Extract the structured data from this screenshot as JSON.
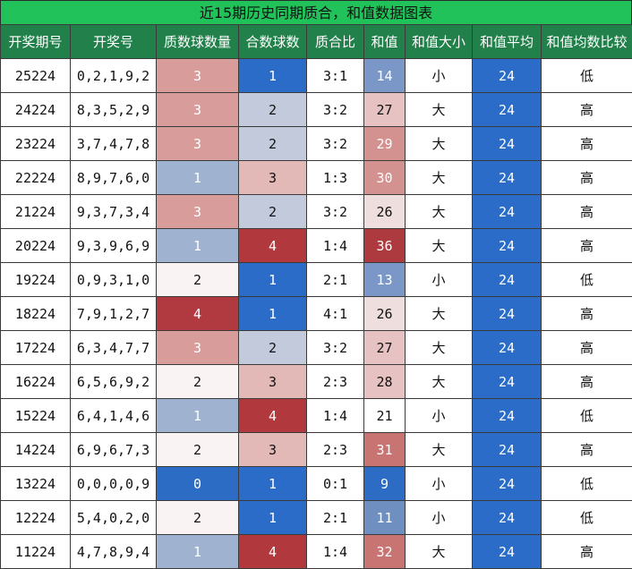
{
  "title": "近15期历史同期质合，和值数据图表",
  "columns": [
    "开奖期号",
    "开奖号",
    "质数球数量",
    "合数球数",
    "质合比",
    "和值",
    "和值大小",
    "和值平均",
    "和值均数比较"
  ],
  "colors": {
    "header_bg": "#22804a",
    "title_bg": "#22c25a",
    "prime_scale": {
      "0": "#2c6cc4",
      "1": "#9fb3d1",
      "2": "#faf3f3",
      "3": "#d89c9a",
      "4": "#b13a40"
    },
    "composite_scale": {
      "1": "#2a6cc8",
      "2": "#c2cadb",
      "3": "#e3b9b8",
      "4": "#b1393d"
    },
    "avg_bg": "#2a6cc8"
  },
  "rows": [
    {
      "period": "25224",
      "numbers": "0,2,1,9,2",
      "prime": "3",
      "composite": "1",
      "ratio": "3:1",
      "sum": "14",
      "size": "小",
      "avg": "24",
      "compare": "低"
    },
    {
      "period": "24224",
      "numbers": "8,3,5,2,9",
      "prime": "3",
      "composite": "2",
      "ratio": "3:2",
      "sum": "27",
      "size": "大",
      "avg": "24",
      "compare": "高"
    },
    {
      "period": "23224",
      "numbers": "3,7,4,7,8",
      "prime": "3",
      "composite": "2",
      "ratio": "3:2",
      "sum": "29",
      "size": "大",
      "avg": "24",
      "compare": "高"
    },
    {
      "period": "22224",
      "numbers": "8,9,7,6,0",
      "prime": "1",
      "composite": "3",
      "ratio": "1:3",
      "sum": "30",
      "size": "大",
      "avg": "24",
      "compare": "高"
    },
    {
      "period": "21224",
      "numbers": "9,3,7,3,4",
      "prime": "3",
      "composite": "2",
      "ratio": "3:2",
      "sum": "26",
      "size": "大",
      "avg": "24",
      "compare": "高"
    },
    {
      "period": "20224",
      "numbers": "9,3,9,6,9",
      "prime": "1",
      "composite": "4",
      "ratio": "1:4",
      "sum": "36",
      "size": "大",
      "avg": "24",
      "compare": "高"
    },
    {
      "period": "19224",
      "numbers": "0,9,3,1,0",
      "prime": "2",
      "composite": "1",
      "ratio": "2:1",
      "sum": "13",
      "size": "小",
      "avg": "24",
      "compare": "低"
    },
    {
      "period": "18224",
      "numbers": "7,9,1,2,7",
      "prime": "4",
      "composite": "1",
      "ratio": "4:1",
      "sum": "26",
      "size": "大",
      "avg": "24",
      "compare": "高"
    },
    {
      "period": "17224",
      "numbers": "6,3,4,7,7",
      "prime": "3",
      "composite": "2",
      "ratio": "3:2",
      "sum": "27",
      "size": "大",
      "avg": "24",
      "compare": "高"
    },
    {
      "period": "16224",
      "numbers": "6,5,6,9,2",
      "prime": "2",
      "composite": "3",
      "ratio": "2:3",
      "sum": "28",
      "size": "大",
      "avg": "24",
      "compare": "高"
    },
    {
      "period": "15224",
      "numbers": "6,4,1,4,6",
      "prime": "1",
      "composite": "4",
      "ratio": "1:4",
      "sum": "21",
      "size": "小",
      "avg": "24",
      "compare": "低"
    },
    {
      "period": "14224",
      "numbers": "6,9,6,7,3",
      "prime": "2",
      "composite": "3",
      "ratio": "2:3",
      "sum": "31",
      "size": "大",
      "avg": "24",
      "compare": "高"
    },
    {
      "period": "13224",
      "numbers": "0,0,0,0,9",
      "prime": "0",
      "composite": "1",
      "ratio": "0:1",
      "sum": "9",
      "size": "小",
      "avg": "24",
      "compare": "低"
    },
    {
      "period": "12224",
      "numbers": "5,4,0,2,0",
      "prime": "2",
      "composite": "1",
      "ratio": "2:1",
      "sum": "11",
      "size": "小",
      "avg": "24",
      "compare": "低"
    },
    {
      "period": "11224",
      "numbers": "4,7,8,9,4",
      "prime": "1",
      "composite": "4",
      "ratio": "1:4",
      "sum": "32",
      "size": "大",
      "avg": "24",
      "compare": "高"
    }
  ]
}
